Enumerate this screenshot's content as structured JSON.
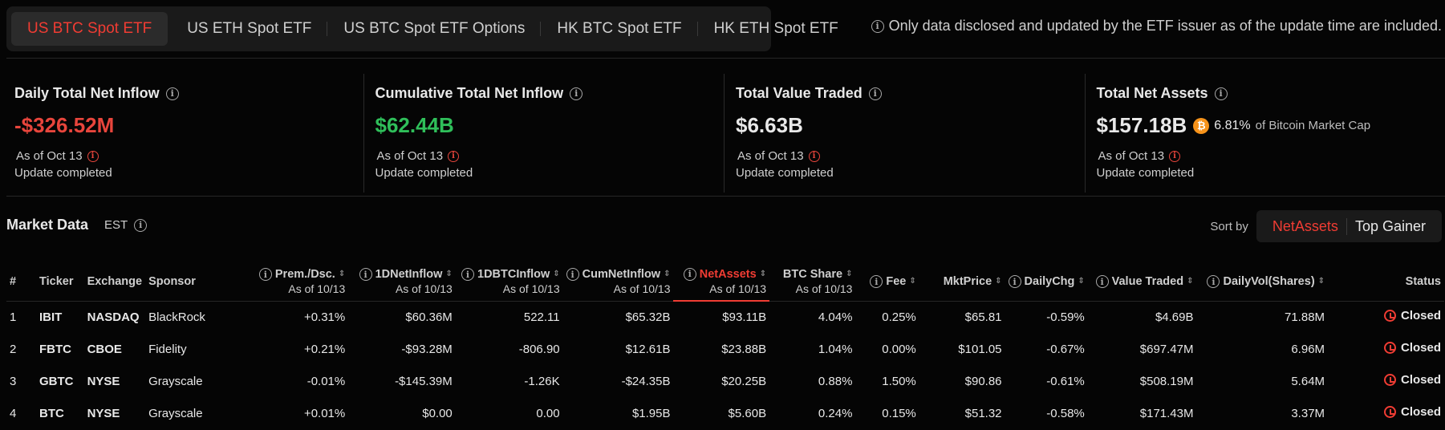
{
  "tabs": [
    {
      "label": "US BTC Spot ETF",
      "active": true
    },
    {
      "label": "US ETH Spot ETF",
      "active": false
    },
    {
      "label": "US BTC Spot ETF Options",
      "active": false
    },
    {
      "label": "HK BTC Spot ETF",
      "active": false
    },
    {
      "label": "HK ETH Spot ETF",
      "active": false
    }
  ],
  "notice": "Only data disclosed and updated by the ETF issuer as of the update time are included.",
  "cards": [
    {
      "title": "Daily Total Net Inflow",
      "value": "-$326.52M",
      "value_color": "red",
      "as_of": "As of Oct 13",
      "status": "Update completed"
    },
    {
      "title": "Cumulative Total Net Inflow",
      "value": "$62.44B",
      "value_color": "green",
      "as_of": "As of Oct 13",
      "status": "Update completed"
    },
    {
      "title": "Total Value Traded",
      "value": "$6.63B",
      "value_color": "white",
      "as_of": "As of Oct 13",
      "status": "Update completed"
    },
    {
      "title": "Total Net Assets",
      "value": "$157.18B",
      "value_color": "white",
      "extra_pct": "6.81%",
      "extra_label": "of Bitcoin Market Cap",
      "as_of": "As of Oct 13",
      "status": "Update completed"
    }
  ],
  "market": {
    "title": "Market Data",
    "timezone": "EST"
  },
  "sort": {
    "label": "Sort by",
    "options": [
      "NetAssets",
      "Top Gainer"
    ],
    "active": "NetAssets"
  },
  "table": {
    "columns": {
      "num": "#",
      "ticker": "Ticker",
      "exchange": "Exchange",
      "sponsor": "Sponsor",
      "prem": "Prem./Dsc.",
      "inflow": "1DNetInflow",
      "btcinflow": "1DBTCInflow",
      "cum": "CumNetInflow",
      "assets": "NetAssets",
      "share": "BTC Share",
      "fee": "Fee",
      "price": "MktPrice",
      "chg": "DailyChg",
      "traded": "Value Traded",
      "vol": "DailyVol(Shares)",
      "status": "Status",
      "asof": "As of 10/13"
    },
    "rows": [
      {
        "num": "1",
        "ticker": "IBIT",
        "exchange": "NASDAQ",
        "sponsor": "BlackRock",
        "prem": "+0.31%",
        "inflow": "$60.36M",
        "btcinflow": "522.11",
        "cum": "$65.32B",
        "assets": "$93.11B",
        "share": "4.04%",
        "fee": "0.25%",
        "price": "$65.81",
        "chg": "-0.59%",
        "traded": "$4.69B",
        "vol": "71.88M",
        "status": "Closed"
      },
      {
        "num": "2",
        "ticker": "FBTC",
        "exchange": "CBOE",
        "sponsor": "Fidelity",
        "prem": "+0.21%",
        "inflow": "-$93.28M",
        "btcinflow": "-806.90",
        "cum": "$12.61B",
        "assets": "$23.88B",
        "share": "1.04%",
        "fee": "0.00%",
        "price": "$101.05",
        "chg": "-0.67%",
        "traded": "$697.47M",
        "vol": "6.96M",
        "status": "Closed"
      },
      {
        "num": "3",
        "ticker": "GBTC",
        "exchange": "NYSE",
        "sponsor": "Grayscale",
        "prem": "-0.01%",
        "inflow": "-$145.39M",
        "btcinflow": "-1.26K",
        "cum": "-$24.35B",
        "assets": "$20.25B",
        "share": "0.88%",
        "fee": "1.50%",
        "price": "$90.86",
        "chg": "-0.61%",
        "traded": "$508.19M",
        "vol": "5.64M",
        "status": "Closed"
      },
      {
        "num": "4",
        "ticker": "BTC",
        "exchange": "NYSE",
        "sponsor": "Grayscale",
        "prem": "+0.01%",
        "inflow": "$0.00",
        "btcinflow": "0.00",
        "cum": "$1.95B",
        "assets": "$5.60B",
        "share": "0.24%",
        "fee": "0.15%",
        "price": "$51.32",
        "chg": "-0.58%",
        "traded": "$171.43M",
        "vol": "3.37M",
        "status": "Closed"
      }
    ]
  },
  "colors": {
    "accent": "#f03c33",
    "positive": "#2fbf5a",
    "negative": "#e8453c",
    "bitcoin": "#f7931a"
  }
}
